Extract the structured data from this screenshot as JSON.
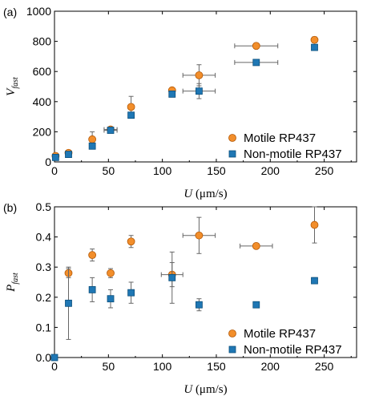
{
  "chart_data": [
    {
      "panel_label": "(a)",
      "type": "scatter",
      "xlabel": "U",
      "xlabel_unit": " (μm/s)",
      "ylabel": "V",
      "ylabel_sub": "fast",
      "xlim": [
        0,
        280
      ],
      "ylim": [
        0,
        1000
      ],
      "xticks": [
        0,
        50,
        100,
        150,
        200,
        250
      ],
      "yticks": [
        0,
        200,
        400,
        600,
        800,
        1000
      ],
      "grid": false,
      "legend_position": "bottom-right",
      "series": [
        {
          "name": "Motile RP437",
          "marker": "circle",
          "color": "#f28e2b",
          "points": [
            {
              "x": 1,
              "y": 40,
              "yerr": 5,
              "xerr": 0
            },
            {
              "x": 13,
              "y": 60,
              "yerr": 10,
              "xerr": 0
            },
            {
              "x": 35,
              "y": 150,
              "yerr": 50,
              "xerr": 0
            },
            {
              "x": 52,
              "y": 215,
              "yerr": 15,
              "xerr": 6
            },
            {
              "x": 71,
              "y": 365,
              "yerr": 70,
              "xerr": 0
            },
            {
              "x": 109,
              "y": 475,
              "yerr": 15,
              "xerr": 0
            },
            {
              "x": 134,
              "y": 575,
              "yerr": 70,
              "xerr": 15
            },
            {
              "x": 187,
              "y": 770,
              "yerr": 15,
              "xerr": 20
            },
            {
              "x": 241,
              "y": 810,
              "yerr": 20,
              "xerr": 0
            }
          ]
        },
        {
          "name": "Non-motile RP437",
          "marker": "square",
          "color": "#1f77b4",
          "points": [
            {
              "x": 1,
              "y": 30,
              "yerr": 0,
              "xerr": 0
            },
            {
              "x": 13,
              "y": 50,
              "yerr": 0,
              "xerr": 0
            },
            {
              "x": 35,
              "y": 105,
              "yerr": 15,
              "xerr": 0
            },
            {
              "x": 52,
              "y": 210,
              "yerr": 15,
              "xerr": 6
            },
            {
              "x": 71,
              "y": 310,
              "yerr": 20,
              "xerr": 0
            },
            {
              "x": 109,
              "y": 450,
              "yerr": 10,
              "xerr": 0
            },
            {
              "x": 134,
              "y": 470,
              "yerr": 50,
              "xerr": 15
            },
            {
              "x": 187,
              "y": 660,
              "yerr": 15,
              "xerr": 20
            },
            {
              "x": 241,
              "y": 760,
              "yerr": 10,
              "xerr": 0
            }
          ]
        }
      ]
    },
    {
      "panel_label": "(b)",
      "type": "scatter",
      "xlabel": "U",
      "xlabel_unit": " (μm/s)",
      "ylabel": "P",
      "ylabel_sub": "fast",
      "xlim": [
        0,
        280
      ],
      "ylim": [
        0,
        0.5
      ],
      "xticks": [
        0,
        50,
        100,
        150,
        200,
        250
      ],
      "yticks": [
        0.0,
        0.1,
        0.2,
        0.3,
        0.4,
        0.5
      ],
      "grid": false,
      "legend_position": "bottom-right",
      "series": [
        {
          "name": "Motile RP437",
          "marker": "circle",
          "color": "#f28e2b",
          "points": [
            {
              "x": 13,
              "y": 0.28,
              "yerr": 0.015,
              "xerr": 0
            },
            {
              "x": 35,
              "y": 0.34,
              "yerr": 0.02,
              "xerr": 0
            },
            {
              "x": 52,
              "y": 0.28,
              "yerr": 0.015,
              "xerr": 0
            },
            {
              "x": 71,
              "y": 0.385,
              "yerr": 0.02,
              "xerr": 0
            },
            {
              "x": 109,
              "y": 0.275,
              "yerr": 0.04,
              "xerr": 10
            },
            {
              "x": 134,
              "y": 0.405,
              "yerr": 0.06,
              "xerr": 15
            },
            {
              "x": 187,
              "y": 0.37,
              "yerr": 0.005,
              "xerr": 15
            },
            {
              "x": 241,
              "y": 0.44,
              "yerr": 0.06,
              "xerr": 0
            }
          ]
        },
        {
          "name": "Non-motile RP437",
          "marker": "square",
          "color": "#1f77b4",
          "points": [
            {
              "x": 0,
              "y": 0.0,
              "yerr": 0,
              "xerr": 0
            },
            {
              "x": 13,
              "y": 0.18,
              "yerr": 0.12,
              "xerr": 0
            },
            {
              "x": 35,
              "y": 0.225,
              "yerr": 0.04,
              "xerr": 0
            },
            {
              "x": 52,
              "y": 0.195,
              "yerr": 0.03,
              "xerr": 0
            },
            {
              "x": 71,
              "y": 0.215,
              "yerr": 0.035,
              "xerr": 0
            },
            {
              "x": 109,
              "y": 0.265,
              "yerr": 0.085,
              "xerr": 0
            },
            {
              "x": 134,
              "y": 0.175,
              "yerr": 0.02,
              "xerr": 0
            },
            {
              "x": 187,
              "y": 0.175,
              "yerr": 0.005,
              "xerr": 0
            },
            {
              "x": 241,
              "y": 0.255,
              "yerr": 0.01,
              "xerr": 0
            }
          ]
        }
      ]
    }
  ]
}
